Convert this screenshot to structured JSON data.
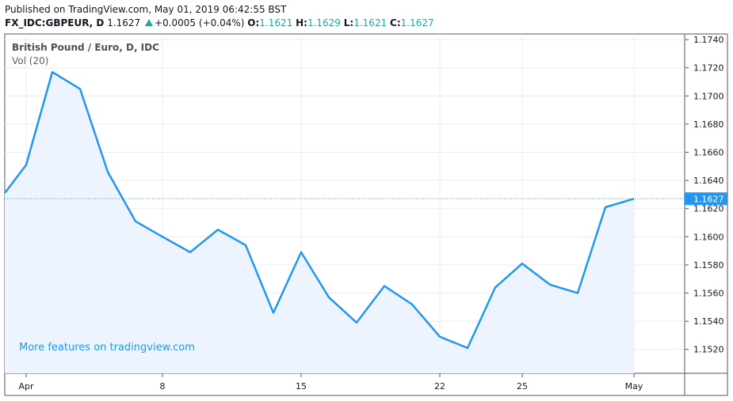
{
  "header": {
    "published": "Published on TradingView.com, May 01, 2019 06:42:55 BST",
    "symbol": "FX_IDC:GBPEUR, D",
    "last": "1.1627",
    "change": "+0.0005 (+0.04%)",
    "o_label": "O:",
    "o_value": "1.1621",
    "h_label": "H:",
    "h_value": "1.1629",
    "l_label": "L:",
    "l_value": "1.1621",
    "c_label": "C:",
    "c_value": "1.1627"
  },
  "legend": {
    "title": "British Pound / Euro, D, IDC",
    "volume": "Vol (20)"
  },
  "promo": "More features on tradingview.com",
  "colors": {
    "line": "#2196f3",
    "area": "#eef4fd",
    "up": "#26a69a",
    "grid": "#e9ecf2",
    "border": "#555555",
    "price_label_bg": "#2196f3"
  },
  "chart_data": {
    "type": "area",
    "ylim": [
      1.1503,
      1.1744
    ],
    "y_ticks": [
      "1.1520",
      "1.1540",
      "1.1560",
      "1.1580",
      "1.1600",
      "1.1620",
      "1.1640",
      "1.1660",
      "1.1680",
      "1.1700",
      "1.1720",
      "1.1740"
    ],
    "x_ticks": [
      "Apr",
      "8",
      "15",
      "22",
      "25",
      "May"
    ],
    "last_price_label": "1.1627",
    "last_price": 1.1627,
    "series": [
      {
        "values": [
          1.1631,
          1.1651,
          1.1717,
          1.1705,
          1.1646,
          1.1611,
          1.16,
          1.1589,
          1.1605,
          1.1594,
          1.1546,
          1.1589,
          1.1557,
          1.1539,
          1.1565,
          1.1552,
          1.1529,
          1.1521,
          1.1564,
          1.1581,
          1.1566,
          1.156,
          1.1621,
          1.1627
        ]
      }
    ]
  }
}
